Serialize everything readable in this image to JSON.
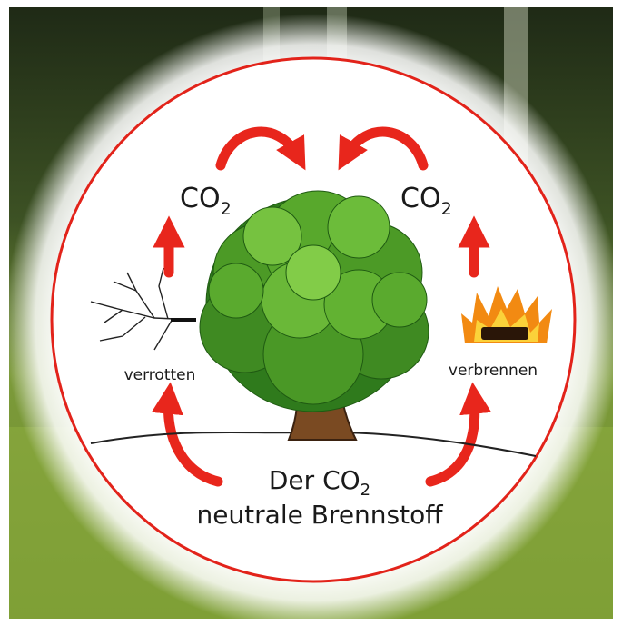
{
  "cycle": {
    "top_left": {
      "text": "CO",
      "subscript": "2"
    },
    "top_right": {
      "text": "CO",
      "subscript": "2"
    },
    "left": "verrotten",
    "right": "verbrennen"
  },
  "caption": {
    "line1": {
      "text": "Der CO",
      "subscript": "2"
    },
    "line2": "neutrale Brennstoff"
  }
}
